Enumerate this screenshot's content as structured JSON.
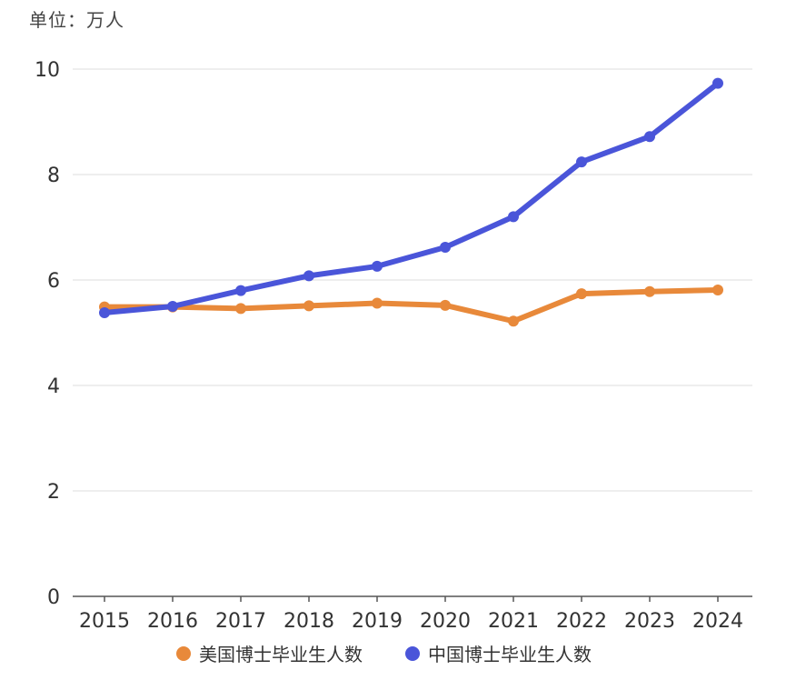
{
  "unit_label": "单位：万人",
  "chart_data": {
    "type": "line",
    "title": "",
    "xlabel": "",
    "ylabel": "",
    "ylim": [
      0,
      10
    ],
    "yticks": [
      "0",
      "2",
      "4",
      "6",
      "8",
      "10"
    ],
    "grid": true,
    "legend_position": "bottom",
    "categories": [
      "2015",
      "2016",
      "2017",
      "2018",
      "2019",
      "2020",
      "2021",
      "2022",
      "2023",
      "2024"
    ],
    "series": [
      {
        "name": "美国博士毕业生人数",
        "color": "#e8893a",
        "values": [
          5.49,
          5.49,
          5.46,
          5.51,
          5.56,
          5.52,
          5.22,
          5.74,
          5.78,
          5.81
        ]
      },
      {
        "name": "中国博士毕业生人数",
        "color": "#4a55d9",
        "values": [
          5.38,
          5.5,
          5.8,
          6.08,
          6.26,
          6.62,
          7.2,
          8.24,
          8.72,
          9.73
        ]
      }
    ]
  }
}
